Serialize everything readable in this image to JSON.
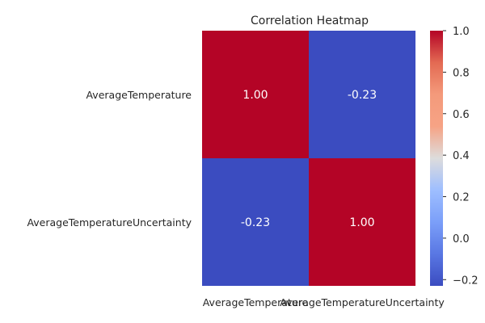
{
  "chart_data": {
    "type": "heatmap",
    "title": "Correlation Heatmap",
    "row_labels": [
      "AverageTemperature",
      "AverageTemperatureUncertainty"
    ],
    "col_labels": [
      "AverageTemperature",
      "AverageTemperatureUncertainty"
    ],
    "values": [
      [
        1.0,
        -0.23
      ],
      [
        -0.23,
        1.0
      ]
    ],
    "annotations": [
      [
        "1.00",
        "-0.23"
      ],
      [
        "-0.23",
        "1.00"
      ]
    ],
    "colormap": "coolwarm",
    "colorbar": {
      "min": -0.23,
      "max": 1.0,
      "ticks": [
        1.0,
        0.8,
        0.6,
        0.4,
        0.2,
        0.0,
        -0.2
      ],
      "tick_labels": [
        "1.0",
        "0.8",
        "0.6",
        "0.4",
        "0.2",
        "0.0",
        "−0.2"
      ]
    }
  }
}
